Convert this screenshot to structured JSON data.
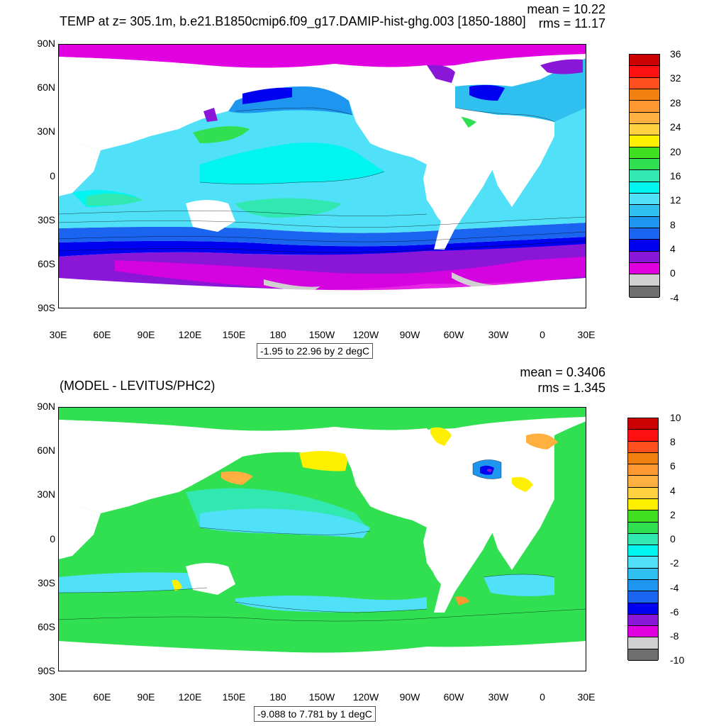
{
  "palette": {
    "dark_gray": "#6e6e6e",
    "light_gray": "#d0d0d0",
    "magenta": "#e000e0",
    "purple": "#8a16d8",
    "blue": "#0000f0",
    "medium_blue": "#1a64f0",
    "sky_blue": "#1e96f0",
    "light_sky": "#30c0f0",
    "cyan_light": "#50e0f8",
    "cyan": "#00f4f0",
    "aqua_green": "#30e8b0",
    "green": "#30e050",
    "lime": "#40e020",
    "yellow": "#fff000",
    "light_orange": "#ffd040",
    "orange_light": "#ffb040",
    "orange": "#ff9830",
    "dark_orange": "#f08010",
    "red_orange": "#ff5020",
    "red": "#ff1010",
    "dark_red": "#cc0000"
  },
  "panels": [
    {
      "title": "TEMP at z= 305.1m, b.e21.B1850cmip6.f09_g17.DAMIP-hist-ghg.003 [1850-1880]",
      "mean_text": "mean = 10.22",
      "rms_text": "rms = 11.17",
      "info_box": "-1.95 to 22.96 by 2 degC",
      "lat_labels": [
        "90N",
        "60N",
        "30N",
        "0",
        "30S",
        "60S",
        "90S"
      ],
      "lon_labels": [
        "30E",
        "60E",
        "90E",
        "120E",
        "150E",
        "180",
        "150W",
        "120W",
        "90W",
        "60W",
        "30W",
        "0",
        "30E"
      ],
      "colorbar_labels": [
        "36",
        "32",
        "28",
        "24",
        "20",
        "16",
        "12",
        "8",
        "4",
        "0",
        "-4"
      ],
      "colorbar_levels": [
        "#6e6e6e",
        "#d0d0d0",
        "#e000e0",
        "#8a16d8",
        "#0000f0",
        "#1a64f0",
        "#1e96f0",
        "#30c0f0",
        "#50e0f8",
        "#00f4f0",
        "#30e8b0",
        "#30e050",
        "#40e020",
        "#fff000",
        "#ffd040",
        "#ffb040",
        "#ff9830",
        "#f08010",
        "#ff5020",
        "#ff1010",
        "#cc0000"
      ]
    },
    {
      "title": "(MODEL - LEVITUS/PHC2)",
      "mean_text": "mean = 0.3406",
      "rms_text": "rms = 1.345",
      "info_box": "-9.088 to 7.781 by 1 degC",
      "lat_labels": [
        "90N",
        "60N",
        "30N",
        "0",
        "30S",
        "60S",
        "90S"
      ],
      "lon_labels": [
        "30E",
        "60E",
        "90E",
        "120E",
        "150E",
        "180",
        "150W",
        "120W",
        "90W",
        "60W",
        "30W",
        "0",
        "30E"
      ],
      "colorbar_labels": [
        "10",
        "8",
        "6",
        "4",
        "2",
        "0",
        "-2",
        "-4",
        "-6",
        "-8",
        "-10"
      ],
      "colorbar_levels": [
        "#6e6e6e",
        "#d0d0d0",
        "#e000e0",
        "#8a16d8",
        "#0000f0",
        "#1a64f0",
        "#1e96f0",
        "#30c0f0",
        "#50e0f8",
        "#00f4f0",
        "#30e8b0",
        "#30e050",
        "#40e020",
        "#fff000",
        "#ffd040",
        "#ffb040",
        "#ff9830",
        "#f08010",
        "#ff5020",
        "#ff1010",
        "#cc0000"
      ]
    }
  ]
}
